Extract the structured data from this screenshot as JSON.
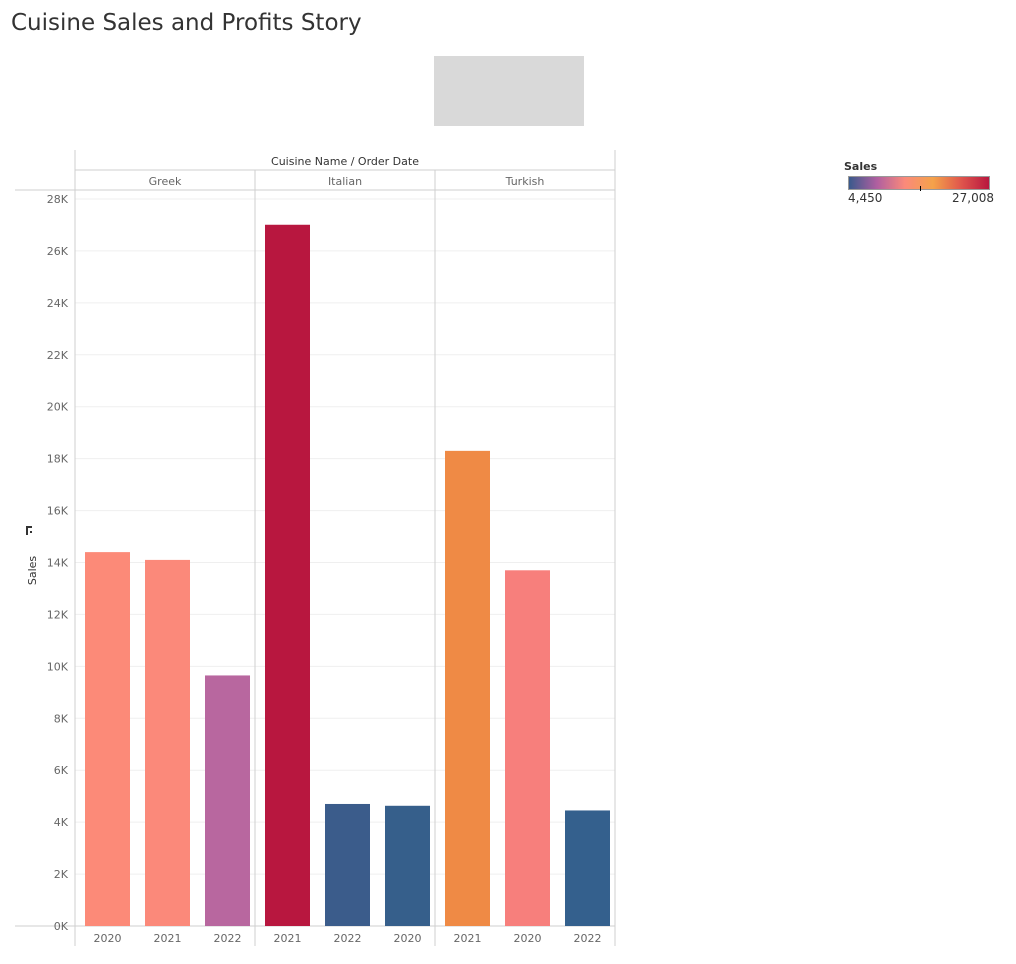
{
  "story_title": "Cuisine Sales and Profits Story",
  "header_label": "Cuisine Name / Order Date",
  "legend": {
    "title": "Sales",
    "min_label": "4,450",
    "max_label": "27,008",
    "gradient_colors": [
      "#3a5a8c",
      "#b05fa0",
      "#fa8a7a",
      "#f4a24a",
      "#e0564c",
      "#b8173f"
    ]
  },
  "chart_data": {
    "type": "bar",
    "title": "",
    "ylabel": "Sales",
    "ylim": [
      0,
      28000
    ],
    "yticks": [
      0,
      2000,
      4000,
      6000,
      8000,
      10000,
      12000,
      14000,
      16000,
      18000,
      20000,
      22000,
      24000,
      26000,
      28000
    ],
    "ytick_labels": [
      "0K",
      "2K",
      "4K",
      "6K",
      "8K",
      "10K",
      "12K",
      "14K",
      "16K",
      "18K",
      "20K",
      "22K",
      "24K",
      "26K",
      "28K"
    ],
    "grid": true,
    "groups": [
      {
        "name": "Greek",
        "bars": [
          {
            "year": "2020",
            "value": 14400,
            "color": "#fc8a78"
          },
          {
            "year": "2021",
            "value": 14100,
            "color": "#fb897a"
          },
          {
            "year": "2022",
            "value": 9650,
            "color": "#b8679f"
          }
        ]
      },
      {
        "name": "Italian",
        "bars": [
          {
            "year": "2021",
            "value": 27008,
            "color": "#b8173f"
          },
          {
            "year": "2022",
            "value": 4700,
            "color": "#3b5c8b"
          },
          {
            "year": "2020",
            "value": 4630,
            "color": "#365f8b"
          }
        ]
      },
      {
        "name": "Turkish",
        "bars": [
          {
            "year": "2021",
            "value": 18300,
            "color": "#ef8a45"
          },
          {
            "year": "2020",
            "value": 13700,
            "color": "#f77f7c"
          },
          {
            "year": "2022",
            "value": 4450,
            "color": "#34608d"
          }
        ]
      }
    ]
  }
}
